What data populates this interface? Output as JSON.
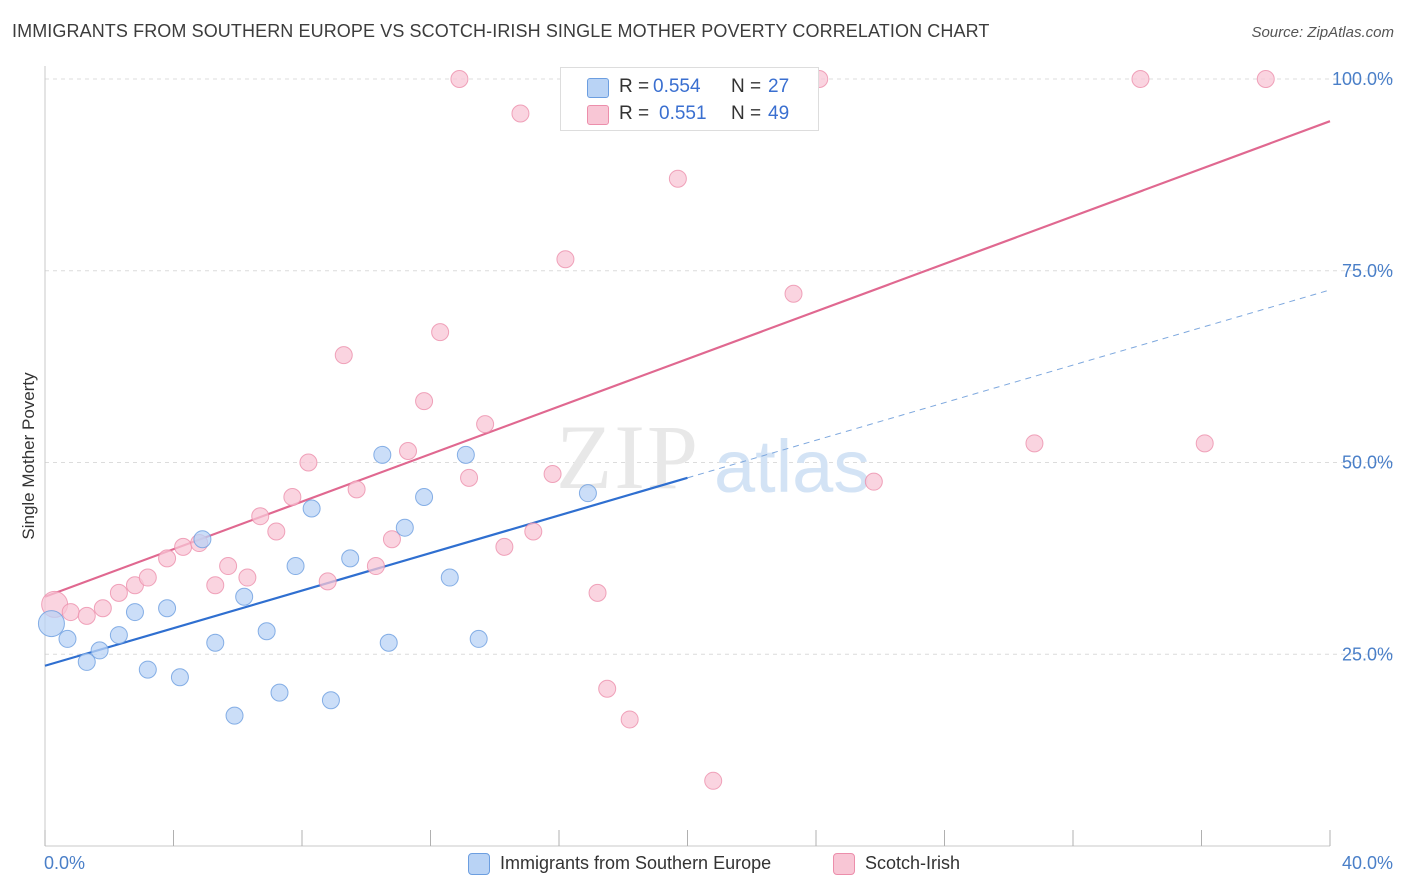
{
  "header": {
    "title": "IMMIGRANTS FROM SOUTHERN EUROPE VS SCOTCH-IRISH SINGLE MOTHER POVERTY CORRELATION CHART",
    "source": "Source: ZipAtlas.com"
  },
  "legend": {
    "r_label": "R =",
    "n_label": "N =",
    "series": [
      {
        "r": "0.554",
        "n": "27"
      },
      {
        "r": "0.551",
        "n": "49"
      }
    ]
  },
  "watermark": {
    "zip": "ZIP",
    "atlas": "atlas"
  },
  "colors": {
    "blue_fill": "#b9d3f5",
    "blue_stroke": "#6c9ee0",
    "blue_line": "#2f6fd0",
    "pink_fill": "#f8c6d5",
    "pink_stroke": "#ec8eab",
    "pink_line": "#e06890",
    "grid": "#dcdcdc",
    "tick_text": "#4a7fc8"
  },
  "chart_data": {
    "type": "scatter",
    "title": "IMMIGRANTS FROM SOUTHERN EUROPE VS SCOTCH-IRISH SINGLE MOTHER POVERTY CORRELATION CHART",
    "xlabel": "",
    "ylabel": "Single Mother Poverty",
    "xlim": [
      0,
      40
    ],
    "ylim": [
      0,
      100
    ],
    "x_tick_labels": [
      "0.0%",
      "40.0%"
    ],
    "y_ticks": [
      25,
      50,
      75,
      100
    ],
    "y_tick_labels": [
      "25.0%",
      "50.0%",
      "75.0%",
      "100.0%"
    ],
    "grid": true,
    "legend_position": "top-center",
    "series": [
      {
        "name": "Immigrants from Southern Europe",
        "color": "#6c9ee0",
        "points": [
          [
            0.2,
            29.0
          ],
          [
            0.7,
            27.0
          ],
          [
            1.3,
            24.0
          ],
          [
            1.7,
            25.5
          ],
          [
            2.3,
            27.5
          ],
          [
            2.8,
            30.5
          ],
          [
            3.2,
            23.0
          ],
          [
            3.8,
            31.0
          ],
          [
            4.2,
            22.0
          ],
          [
            4.9,
            40.0
          ],
          [
            5.3,
            26.5
          ],
          [
            5.9,
            17.0
          ],
          [
            6.2,
            32.5
          ],
          [
            6.9,
            28.0
          ],
          [
            7.3,
            20.0
          ],
          [
            7.8,
            36.5
          ],
          [
            8.3,
            44.0
          ],
          [
            8.9,
            19.0
          ],
          [
            9.5,
            37.5
          ],
          [
            10.5,
            51.0
          ],
          [
            10.7,
            26.5
          ],
          [
            11.2,
            41.5
          ],
          [
            11.8,
            45.5
          ],
          [
            12.6,
            35.0
          ],
          [
            13.1,
            51.0
          ],
          [
            13.5,
            27.0
          ],
          [
            16.9,
            46.0
          ]
        ],
        "trend": {
          "x": [
            0,
            20
          ],
          "y": [
            23.5,
            48.0
          ]
        },
        "trend_extension": {
          "x": [
            20,
            40
          ],
          "y": [
            48.0,
            72.5
          ]
        }
      },
      {
        "name": "Scotch-Irish",
        "color": "#ec8eab",
        "points": [
          [
            0.3,
            31.5
          ],
          [
            0.8,
            30.5
          ],
          [
            1.3,
            30.0
          ],
          [
            1.8,
            31.0
          ],
          [
            2.3,
            33.0
          ],
          [
            2.8,
            34.0
          ],
          [
            3.2,
            35.0
          ],
          [
            3.8,
            37.5
          ],
          [
            4.3,
            39.0
          ],
          [
            4.8,
            39.5
          ],
          [
            5.3,
            34.0
          ],
          [
            5.7,
            36.5
          ],
          [
            6.3,
            35.0
          ],
          [
            6.7,
            43.0
          ],
          [
            7.2,
            41.0
          ],
          [
            7.7,
            45.5
          ],
          [
            8.2,
            50.0
          ],
          [
            8.8,
            34.5
          ],
          [
            9.3,
            64.0
          ],
          [
            9.7,
            46.5
          ],
          [
            10.3,
            36.5
          ],
          [
            10.8,
            40.0
          ],
          [
            11.3,
            51.5
          ],
          [
            11.8,
            58.0
          ],
          [
            12.3,
            67.0
          ],
          [
            12.9,
            100.0
          ],
          [
            13.2,
            48.0
          ],
          [
            13.7,
            55.0
          ],
          [
            14.3,
            39.0
          ],
          [
            14.8,
            95.5
          ],
          [
            15.2,
            41.0
          ],
          [
            15.8,
            48.5
          ],
          [
            16.2,
            76.5
          ],
          [
            17.2,
            33.0
          ],
          [
            17.5,
            20.5
          ],
          [
            18.2,
            16.5
          ],
          [
            18.7,
            100.0
          ],
          [
            19.7,
            87.0
          ],
          [
            20.8,
            8.5
          ],
          [
            21.2,
            100.0
          ],
          [
            21.7,
            100.0
          ],
          [
            22.3,
            100.0
          ],
          [
            23.3,
            72.0
          ],
          [
            24.1,
            100.0
          ],
          [
            25.8,
            47.5
          ],
          [
            30.8,
            52.5
          ],
          [
            34.1,
            100.0
          ],
          [
            36.1,
            52.5
          ],
          [
            38.0,
            100.0
          ]
        ],
        "trend": {
          "x": [
            0,
            40
          ],
          "y": [
            32.5,
            94.5
          ]
        }
      }
    ]
  }
}
